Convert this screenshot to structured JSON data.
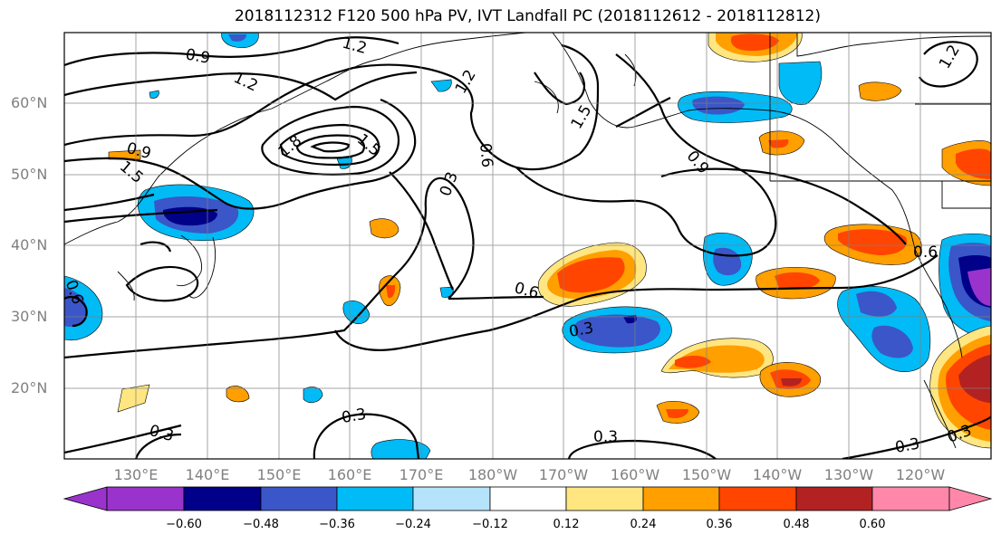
{
  "title": "2018112312 F120 500 hPa PV, IVT Landfall PC (2018112612 - 2018112812)",
  "lat_labels": [
    "60°N",
    "50°N",
    "40°N",
    "30°N",
    "20°N"
  ],
  "lon_labels": [
    "130°E",
    "140°E",
    "150°E",
    "160°E",
    "170°E",
    "180°W",
    "170°W",
    "160°W",
    "150°W",
    "140°W",
    "130°W",
    "120°W"
  ],
  "contour_labels": [
    "0.9",
    "1.2",
    "1.2",
    "0.9",
    "1.5",
    "1.8",
    "1.5",
    "1.2",
    "0.3",
    "0.6",
    "1.5",
    "1.2",
    "0.9",
    "0.6",
    "0.6",
    "0.3",
    "0.3",
    "0.3",
    "0.3",
    "0.3",
    "0.3",
    "0.6"
  ],
  "colorbar": {
    "ticks": [
      "−0.60",
      "−0.48",
      "−0.36",
      "−0.24",
      "−0.12",
      "0.12",
      "0.24",
      "0.36",
      "0.48",
      "0.60"
    ],
    "colors": [
      "#9933cc",
      "#000088",
      "#3a56c8",
      "#00bbf5",
      "#b4e3fb",
      "#ffffff",
      "#ffe680",
      "#ff9f00",
      "#ff4500",
      "#b22222",
      "#ff88aa"
    ]
  }
}
